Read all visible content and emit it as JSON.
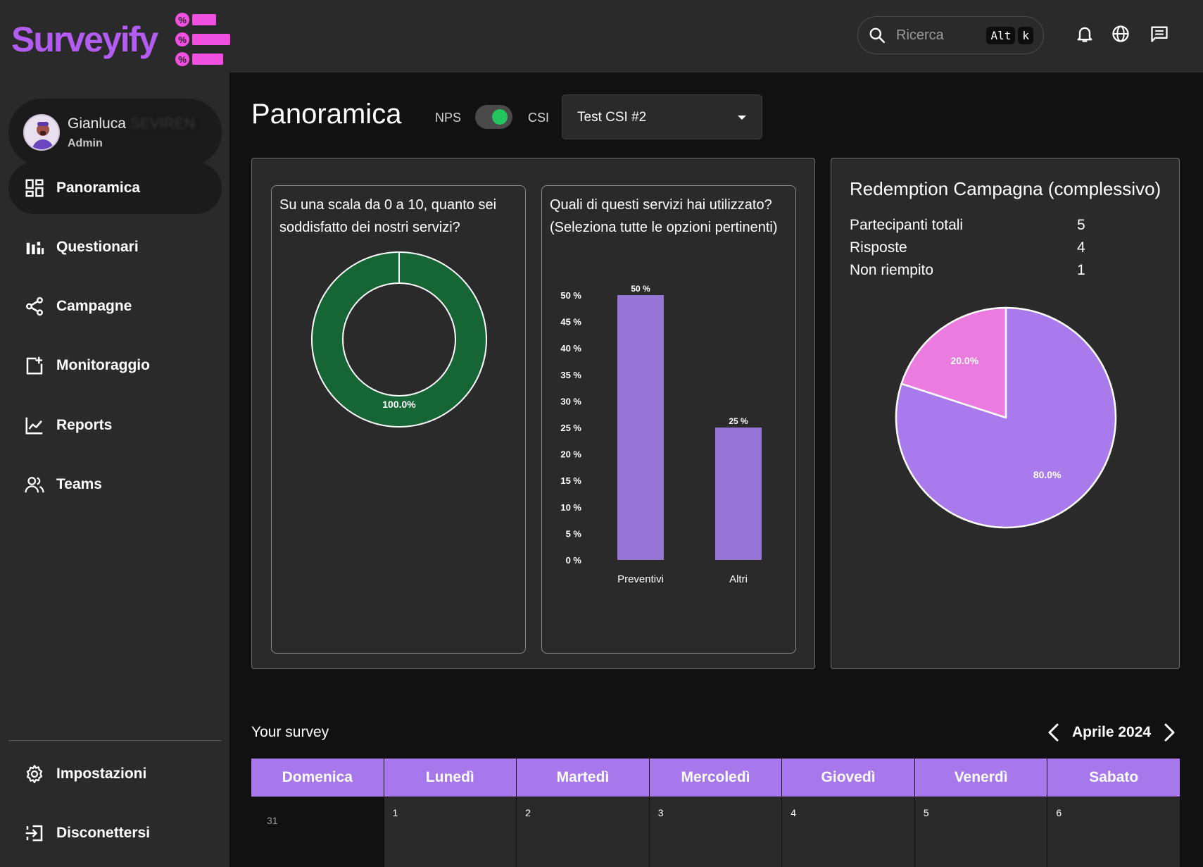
{
  "app": {
    "logo_text": "Surveyify"
  },
  "topbar": {
    "search_placeholder": "Ricerca",
    "shortcut_keys": [
      "Alt",
      "k"
    ],
    "icons": [
      "bell-icon",
      "globe-icon",
      "chat-icon"
    ]
  },
  "user": {
    "name": "Gianluca",
    "name_redacted": "SEVIREN",
    "role": "Admin"
  },
  "sidebar": {
    "items": [
      {
        "label": "Panoramica",
        "icon": "dashboard-icon",
        "active": true
      },
      {
        "label": "Questionari",
        "icon": "bar-chart-icon",
        "active": false
      },
      {
        "label": "Campagne",
        "icon": "share-icon",
        "active": false
      },
      {
        "label": "Monitoraggio",
        "icon": "monitor-icon",
        "active": false
      },
      {
        "label": "Reports",
        "icon": "line-chart-icon",
        "active": false
      },
      {
        "label": "Teams",
        "icon": "users-icon",
        "active": false
      }
    ],
    "bottom": [
      {
        "label": "Impostazioni",
        "icon": "gear-icon"
      },
      {
        "label": "Disconettersi",
        "icon": "logout-icon"
      }
    ]
  },
  "main": {
    "title": "Panoramica",
    "toggle_left": "NPS",
    "toggle_right": "CSI",
    "toggle_on": true,
    "select_value": "Test CSI #2"
  },
  "chart_data": [
    {
      "type": "pie",
      "variant": "donut",
      "title": "Su una scala da 0 a 10, quanto sei soddisfatto dei nostri servizi?",
      "slices": [
        {
          "label": "100.0%",
          "value": 100,
          "color": "#166534"
        }
      ]
    },
    {
      "type": "bar",
      "title": "Quali di questi servizi hai utilizzato? (Seleziona tutte le opzioni pertinenti)",
      "categories": [
        "Preventivi",
        "Altri"
      ],
      "values": [
        50,
        25
      ],
      "value_labels": [
        "50 %",
        "25 %"
      ],
      "ylim": [
        0,
        50
      ],
      "yticks": [
        "0 %",
        "5 %",
        "10 %",
        "15 %",
        "20 %",
        "25 %",
        "30 %",
        "35 %",
        "40 %",
        "45 %",
        "50 %"
      ],
      "color": "#9575d6"
    },
    {
      "type": "pie",
      "title": "Redemption Campagna (complessivo)",
      "slices": [
        {
          "label": "80.0%",
          "value": 80,
          "color": "#a87aec"
        },
        {
          "label": "20.0%",
          "value": 20,
          "color": "#ec7be0"
        }
      ]
    }
  ],
  "redemption": {
    "title": "Redemption Campagna (complessivo)",
    "stats": [
      {
        "label": "Partecipanti totali",
        "value": "5"
      },
      {
        "label": "Risposte",
        "value": "4"
      },
      {
        "label": "Non riempito",
        "value": "1"
      }
    ]
  },
  "calendar": {
    "section_label": "Your survey",
    "month": "Aprile 2024",
    "days": [
      "Domenica",
      "Lunedì",
      "Martedì",
      "Mercoledì",
      "Giovedì",
      "Venerdì",
      "Sabato"
    ],
    "dates": [
      "31",
      "1",
      "2",
      "3",
      "4",
      "5",
      "6"
    ],
    "header_color": "#a678ec"
  }
}
